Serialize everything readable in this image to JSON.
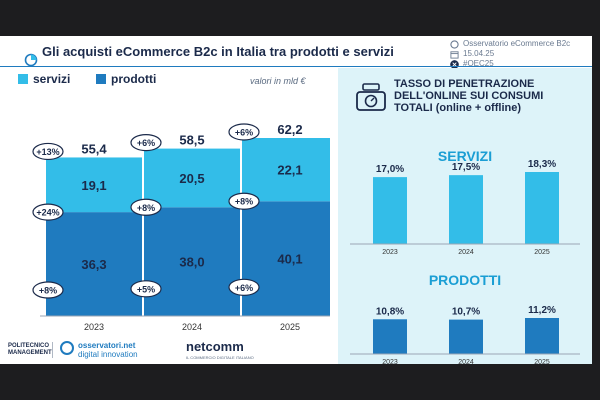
{
  "header": {
    "title": "Gli acquisti eCommerce B2c in Italia tra prodotti e servizi",
    "organizer": "Osservatorio eCommerce B2c",
    "date": "15.04.25",
    "hashtag": "#OEC25"
  },
  "colors": {
    "servizi": "#33bde8",
    "prodotti": "#1f7bbf",
    "navy": "#1b2a4a",
    "panel": "#ddf3f9",
    "accent_text": "#1a9ed4"
  },
  "icons": [
    "pie-chart-icon",
    "calendar-icon",
    "x-logo-icon",
    "scale-icon"
  ],
  "legend": {
    "servizi": "servizi",
    "prodotti": "prodotti"
  },
  "unit": "valori in mld €",
  "chart_data": [
    {
      "type": "bar",
      "stacked": true,
      "categories": [
        "2023",
        "2024",
        "2025"
      ],
      "series": [
        {
          "name": "prodotti",
          "values": [
            36.3,
            38.0,
            40.1
          ],
          "labels": [
            "36,3",
            "38,0",
            "40,1"
          ],
          "growth": [
            "+8%",
            "+5%",
            "+6%"
          ]
        },
        {
          "name": "servizi",
          "values": [
            19.1,
            20.5,
            22.1
          ],
          "labels": [
            "19,1",
            "20,5",
            "22,1"
          ],
          "growth": [
            "+24%",
            "+8%",
            "+8%"
          ]
        }
      ],
      "totals": [
        55.4,
        58.5,
        62.2
      ],
      "total_labels": [
        "55,4",
        "58,5",
        "62,2"
      ],
      "total_growth": [
        "+13%",
        "+6%",
        "+6%"
      ],
      "ylim": [
        0,
        62.2
      ]
    },
    {
      "type": "bar",
      "title": "SERVIZI",
      "categories": [
        "2023",
        "2024",
        "2025"
      ],
      "values": [
        17.0,
        17.5,
        18.3
      ],
      "labels": [
        "17,0%",
        "17,5%",
        "18,3%"
      ],
      "ylim": [
        0,
        18.3
      ]
    },
    {
      "type": "bar",
      "title": "PRODOTTI",
      "categories": [
        "2023",
        "2024",
        "2025"
      ],
      "values": [
        10.8,
        10.7,
        11.2
      ],
      "labels": [
        "10,8%",
        "10,7%",
        "11,2%"
      ],
      "ylim": [
        0,
        11.2
      ]
    }
  ],
  "penetration": {
    "title_lines": [
      "TASSO DI PENETRAZIONE",
      "DELL'ONLINE SUI CONSUMI",
      "TOTALI (online + offline)"
    ]
  },
  "logos": {
    "polimi_top": "POLITECNICO",
    "polimi_bottom": "MANAGEMENT",
    "osservatori_1": "osservatori.net",
    "osservatori_2": "digital innovation",
    "netcomm": "netcomm",
    "netcomm_sub": "IL COMMERCIO DIGITALE ITALIANO"
  }
}
